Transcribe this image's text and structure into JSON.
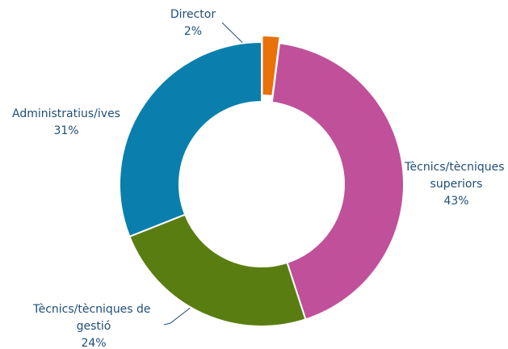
{
  "chart_data": {
    "type": "donut",
    "categories": [
      "Director",
      "Tècnics/tècniques superiors",
      "Tècnics/tècniques de gestió",
      "Administratius/ives"
    ],
    "values": [
      2,
      43,
      24,
      31
    ],
    "value_labels": [
      "2%",
      "43%",
      "24%",
      "31%"
    ],
    "colors": [
      "#e8710a",
      "#c0509a",
      "#5a7d12",
      "#0a7fad"
    ]
  }
}
